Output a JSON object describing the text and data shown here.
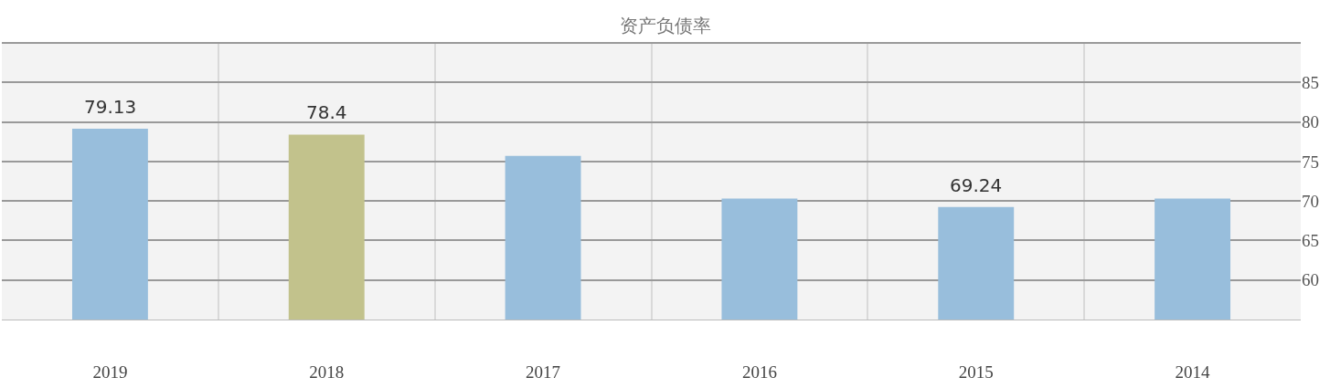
{
  "chart_data": {
    "type": "bar",
    "title": "资产负债率",
    "categories": [
      "2019",
      "2018",
      "2017",
      "2016",
      "2015",
      "2014"
    ],
    "values": [
      79.13,
      78.4,
      75.7,
      70.3,
      69.24,
      70.3
    ],
    "colors": [
      "#98bedc",
      "#c2c28c",
      "#98bedc",
      "#98bedc",
      "#98bedc",
      "#98bedc"
    ],
    "value_labels": [
      "79.13",
      "78.4",
      null,
      null,
      "69.24",
      null
    ],
    "ylim": [
      55,
      90
    ],
    "yticks": [
      60,
      65,
      70,
      75,
      80,
      85
    ],
    "grid": true
  }
}
